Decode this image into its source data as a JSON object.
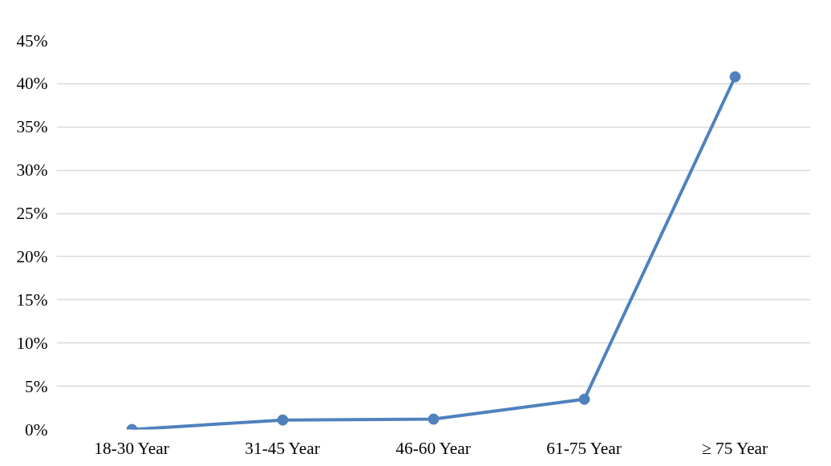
{
  "chart_data": {
    "type": "line",
    "categories": [
      "18-30 Year",
      "31-45 Year",
      "46-60 Year",
      "61-75 Year",
      "≥ 75 Year"
    ],
    "series": [
      {
        "color": "#4f81bd",
        "values": [
          0,
          1.1,
          1.2,
          3.5,
          40.8
        ]
      }
    ],
    "ylim": [
      0,
      45
    ],
    "yticks": [
      {
        "value": 0,
        "label": "0%"
      },
      {
        "value": 5,
        "label": "5%"
      },
      {
        "value": 10,
        "label": "10%"
      },
      {
        "value": 15,
        "label": "15%"
      },
      {
        "value": 20,
        "label": "20%"
      },
      {
        "value": 25,
        "label": "25%"
      },
      {
        "value": 30,
        "label": "30%"
      },
      {
        "value": 35,
        "label": "35%"
      },
      {
        "value": 40,
        "label": "40%"
      },
      {
        "value": 45,
        "label": "45%"
      }
    ],
    "grid": "y",
    "marker": "circle",
    "line_style": "solid"
  }
}
